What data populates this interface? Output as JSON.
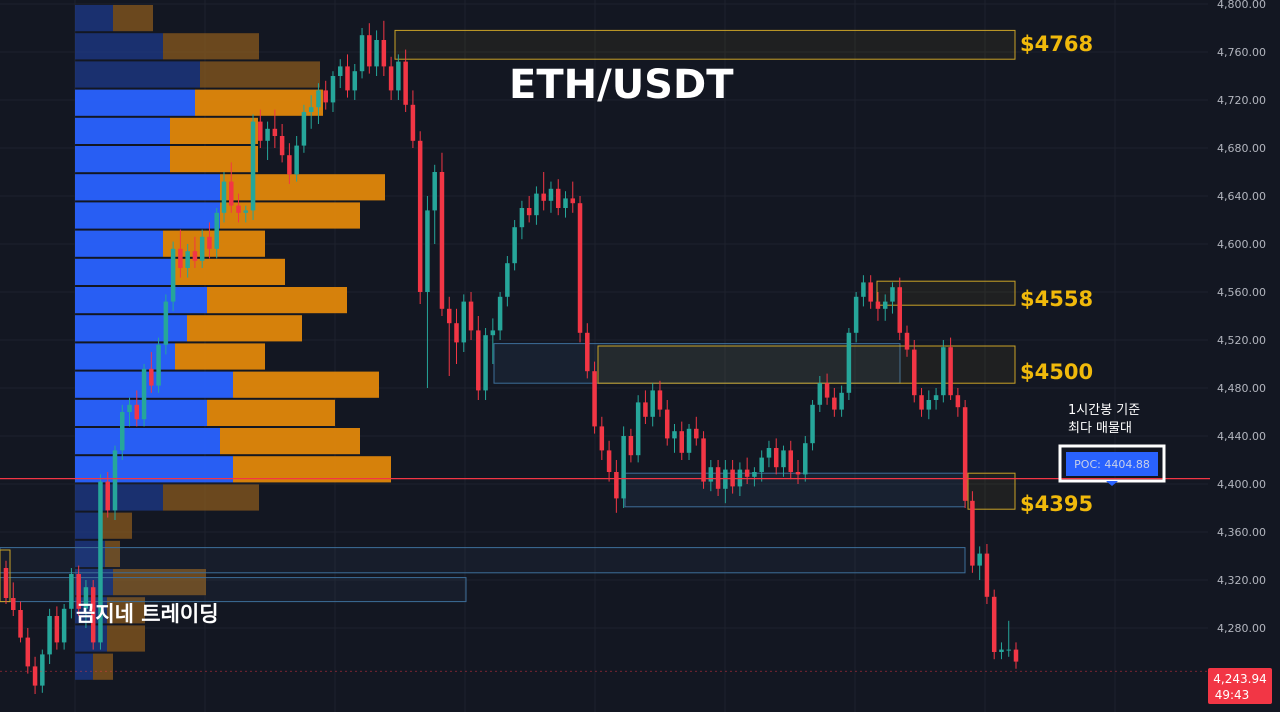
{
  "chart_data": {
    "type": "candlestick",
    "title": "ETH/USDT",
    "watermark": "곰지네 트레이딩",
    "y_axis": {
      "ticks": [
        "4,800.00",
        "4,760.00",
        "4,720.00",
        "4,680.00",
        "4,640.00",
        "4,600.00",
        "4,560.00",
        "4,520.00",
        "4,480.00",
        "4,440.00",
        "4,400.00",
        "4,360.00",
        "4,320.00",
        "4,280.00"
      ],
      "ylim": [
        4222,
        4800
      ],
      "grid": true
    },
    "last_price": {
      "label": "4,243.94",
      "countdown": "49:43",
      "value": 4243.94,
      "color": "#f23645"
    },
    "poc": {
      "label": "POC: 4404.88",
      "value": 4404.88,
      "note_line1": "1시간봉 기준",
      "note_line2": "최다 매물대",
      "color": "#f23645"
    },
    "levels": [
      {
        "label": "$4768",
        "top": 4778,
        "bottom": 4754,
        "color": "#f0b90b"
      },
      {
        "label": "$4558",
        "top": 4569,
        "bottom": 4549,
        "color": "#f0b90b"
      },
      {
        "label": "$4500",
        "top": 4515,
        "bottom": 4484,
        "color": "#f0b90b"
      },
      {
        "label": "$4395",
        "top": 4409,
        "bottom": 4379,
        "color": "#f0b90b"
      }
    ],
    "volume_profile": {
      "price_start": 4800,
      "bin_height": 23.5,
      "rows": [
        {
          "buy": 38,
          "sell": 40
        },
        {
          "buy": 88,
          "sell": 96
        },
        {
          "buy": 125,
          "sell": 120
        },
        {
          "buy": 120,
          "sell": 128
        },
        {
          "buy": 95,
          "sell": 88
        },
        {
          "buy": 95,
          "sell": 88
        },
        {
          "buy": 145,
          "sell": 165
        },
        {
          "buy": 145,
          "sell": 140
        },
        {
          "buy": 88,
          "sell": 102
        },
        {
          "buy": 100,
          "sell": 110
        },
        {
          "buy": 132,
          "sell": 140
        },
        {
          "buy": 112,
          "sell": 115
        },
        {
          "buy": 100,
          "sell": 90
        },
        {
          "buy": 158,
          "sell": 146
        },
        {
          "buy": 132,
          "sell": 128
        },
        {
          "buy": 145,
          "sell": 140
        },
        {
          "buy": 158,
          "sell": 158
        },
        {
          "buy": 88,
          "sell": 96
        },
        {
          "buy": 25,
          "sell": 32
        },
        {
          "buy": 30,
          "sell": 15
        },
        {
          "buy": 38,
          "sell": 93
        },
        {
          "buy": 32,
          "sell": 38
        },
        {
          "buy": 32,
          "sell": 38
        },
        {
          "buy": 18,
          "sell": 20
        }
      ]
    },
    "candles": [
      [
        4330,
        4336,
        4300,
        4305
      ],
      [
        4305,
        4318,
        4290,
        4295
      ],
      [
        4295,
        4302,
        4268,
        4272
      ],
      [
        4272,
        4280,
        4242,
        4248
      ],
      [
        4248,
        4256,
        4225,
        4232
      ],
      [
        4232,
        4262,
        4226,
        4258
      ],
      [
        4258,
        4296,
        4250,
        4290
      ],
      [
        4290,
        4298,
        4262,
        4268
      ],
      [
        4268,
        4300,
        4262,
        4296
      ],
      [
        4296,
        4330,
        4288,
        4325
      ],
      [
        4325,
        4332,
        4290,
        4296
      ],
      [
        4296,
        4320,
        4280,
        4314
      ],
      [
        4314,
        4320,
        4262,
        4268
      ],
      [
        4268,
        4408,
        4262,
        4402
      ],
      [
        4402,
        4410,
        4372,
        4378
      ],
      [
        4378,
        4432,
        4370,
        4428
      ],
      [
        4428,
        4466,
        4420,
        4460
      ],
      [
        4460,
        4472,
        4448,
        4466
      ],
      [
        4466,
        4478,
        4448,
        4454
      ],
      [
        4454,
        4500,
        4448,
        4496
      ],
      [
        4496,
        4510,
        4476,
        4482
      ],
      [
        4482,
        4522,
        4476,
        4516
      ],
      [
        4516,
        4558,
        4508,
        4552
      ],
      [
        4552,
        4602,
        4544,
        4596
      ],
      [
        4596,
        4612,
        4572,
        4580
      ],
      [
        4580,
        4600,
        4572,
        4594
      ],
      [
        4594,
        4606,
        4580,
        4586
      ],
      [
        4586,
        4612,
        4580,
        4606
      ],
      [
        4606,
        4618,
        4588,
        4596
      ],
      [
        4596,
        4630,
        4588,
        4626
      ],
      [
        4626,
        4660,
        4618,
        4652
      ],
      [
        4652,
        4668,
        4626,
        4632
      ],
      [
        4632,
        4642,
        4618,
        4626
      ],
      [
        4626,
        4632,
        4618,
        4628
      ],
      [
        4628,
        4708,
        4620,
        4702
      ],
      [
        4702,
        4712,
        4680,
        4686
      ],
      [
        4686,
        4702,
        4670,
        4696
      ],
      [
        4696,
        4712,
        4680,
        4690
      ],
      [
        4690,
        4700,
        4668,
        4674
      ],
      [
        4674,
        4684,
        4650,
        4658
      ],
      [
        4658,
        4690,
        4652,
        4682
      ],
      [
        4682,
        4716,
        4676,
        4710
      ],
      [
        4710,
        4724,
        4696,
        4714
      ],
      [
        4714,
        4734,
        4700,
        4728
      ],
      [
        4728,
        4736,
        4712,
        4718
      ],
      [
        4718,
        4744,
        4710,
        4740
      ],
      [
        4740,
        4754,
        4730,
        4748
      ],
      [
        4748,
        4758,
        4722,
        4728
      ],
      [
        4728,
        4750,
        4720,
        4744
      ],
      [
        4744,
        4780,
        4738,
        4774
      ],
      [
        4774,
        4784,
        4742,
        4748
      ],
      [
        4748,
        4778,
        4740,
        4770
      ],
      [
        4770,
        4786,
        4740,
        4748
      ],
      [
        4748,
        4756,
        4720,
        4728
      ],
      [
        4728,
        4758,
        4720,
        4752
      ],
      [
        4752,
        4762,
        4710,
        4716
      ],
      [
        4716,
        4728,
        4680,
        4686
      ],
      [
        4686,
        4694,
        4550,
        4560
      ],
      [
        4560,
        4640,
        4480,
        4628
      ],
      [
        4628,
        4666,
        4600,
        4660
      ],
      [
        4660,
        4676,
        4540,
        4546
      ],
      [
        4546,
        4556,
        4490,
        4534
      ],
      [
        4534,
        4546,
        4500,
        4518
      ],
      [
        4518,
        4558,
        4510,
        4552
      ],
      [
        4552,
        4560,
        4520,
        4528
      ],
      [
        4528,
        4540,
        4470,
        4478
      ],
      [
        4478,
        4530,
        4470,
        4524
      ],
      [
        4524,
        4538,
        4500,
        4528
      ],
      [
        4528,
        4560,
        4520,
        4556
      ],
      [
        4556,
        4590,
        4548,
        4584
      ],
      [
        4584,
        4620,
        4578,
        4614
      ],
      [
        4614,
        4636,
        4604,
        4630
      ],
      [
        4630,
        4640,
        4618,
        4624
      ],
      [
        4624,
        4648,
        4616,
        4642
      ],
      [
        4642,
        4660,
        4628,
        4636
      ],
      [
        4636,
        4652,
        4626,
        4646
      ],
      [
        4646,
        4654,
        4624,
        4630
      ],
      [
        4630,
        4644,
        4622,
        4638
      ],
      [
        4638,
        4652,
        4626,
        4634
      ],
      [
        4634,
        4640,
        4518,
        4526
      ],
      [
        4526,
        4534,
        4488,
        4494
      ],
      [
        4494,
        4502,
        4442,
        4448
      ],
      [
        4448,
        4456,
        4420,
        4428
      ],
      [
        4428,
        4436,
        4402,
        4410
      ],
      [
        4410,
        4420,
        4376,
        4388
      ],
      [
        4388,
        4448,
        4380,
        4440
      ],
      [
        4440,
        4446,
        4418,
        4424
      ],
      [
        4424,
        4474,
        4418,
        4468
      ],
      [
        4468,
        4478,
        4450,
        4456
      ],
      [
        4456,
        4484,
        4448,
        4478
      ],
      [
        4478,
        4486,
        4456,
        4462
      ],
      [
        4462,
        4470,
        4432,
        4438
      ],
      [
        4438,
        4450,
        4426,
        4444
      ],
      [
        4444,
        4452,
        4420,
        4426
      ],
      [
        4426,
        4450,
        4420,
        4446
      ],
      [
        4446,
        4456,
        4432,
        4438
      ],
      [
        4438,
        4444,
        4396,
        4402
      ],
      [
        4402,
        4420,
        4394,
        4414
      ],
      [
        4414,
        4420,
        4390,
        4396
      ],
      [
        4396,
        4420,
        4384,
        4412
      ],
      [
        4412,
        4420,
        4392,
        4398
      ],
      [
        4398,
        4418,
        4390,
        4412
      ],
      [
        4412,
        4422,
        4400,
        4406
      ],
      [
        4406,
        4414,
        4398,
        4410
      ],
      [
        4410,
        4428,
        4402,
        4422
      ],
      [
        4422,
        4436,
        4414,
        4430
      ],
      [
        4430,
        4438,
        4408,
        4414
      ],
      [
        4414,
        4432,
        4406,
        4428
      ],
      [
        4428,
        4436,
        4404,
        4410
      ],
      [
        4410,
        4420,
        4400,
        4408
      ],
      [
        4408,
        4440,
        4402,
        4434
      ],
      [
        4434,
        4470,
        4428,
        4466
      ],
      [
        4466,
        4490,
        4460,
        4484
      ],
      [
        4484,
        4492,
        4466,
        4472
      ],
      [
        4472,
        4480,
        4456,
        4462
      ],
      [
        4462,
        4482,
        4456,
        4476
      ],
      [
        4476,
        4530,
        4470,
        4526
      ],
      [
        4526,
        4560,
        4518,
        4556
      ],
      [
        4556,
        4574,
        4548,
        4568
      ],
      [
        4568,
        4574,
        4546,
        4552
      ],
      [
        4552,
        4560,
        4536,
        4546
      ],
      [
        4546,
        4558,
        4536,
        4552
      ],
      [
        4552,
        4568,
        4542,
        4564
      ],
      [
        4564,
        4572,
        4520,
        4526
      ],
      [
        4526,
        4532,
        4506,
        4512
      ],
      [
        4512,
        4520,
        4468,
        4474
      ],
      [
        4474,
        4480,
        4456,
        4462
      ],
      [
        4462,
        4478,
        4454,
        4470
      ],
      [
        4470,
        4480,
        4462,
        4474
      ],
      [
        4474,
        4520,
        4468,
        4514
      ],
      [
        4514,
        4522,
        4470,
        4474
      ],
      [
        4474,
        4480,
        4456,
        4464
      ],
      [
        4464,
        4470,
        4380,
        4386
      ],
      [
        4386,
        4394,
        4326,
        4332
      ],
      [
        4332,
        4348,
        4320,
        4342
      ],
      [
        4342,
        4350,
        4300,
        4306
      ],
      [
        4306,
        4312,
        4254,
        4260
      ],
      [
        4260,
        4268,
        4254,
        4262
      ],
      [
        4262,
        4286,
        4256,
        4262
      ],
      [
        4262,
        4268,
        4246,
        4252
      ]
    ]
  }
}
